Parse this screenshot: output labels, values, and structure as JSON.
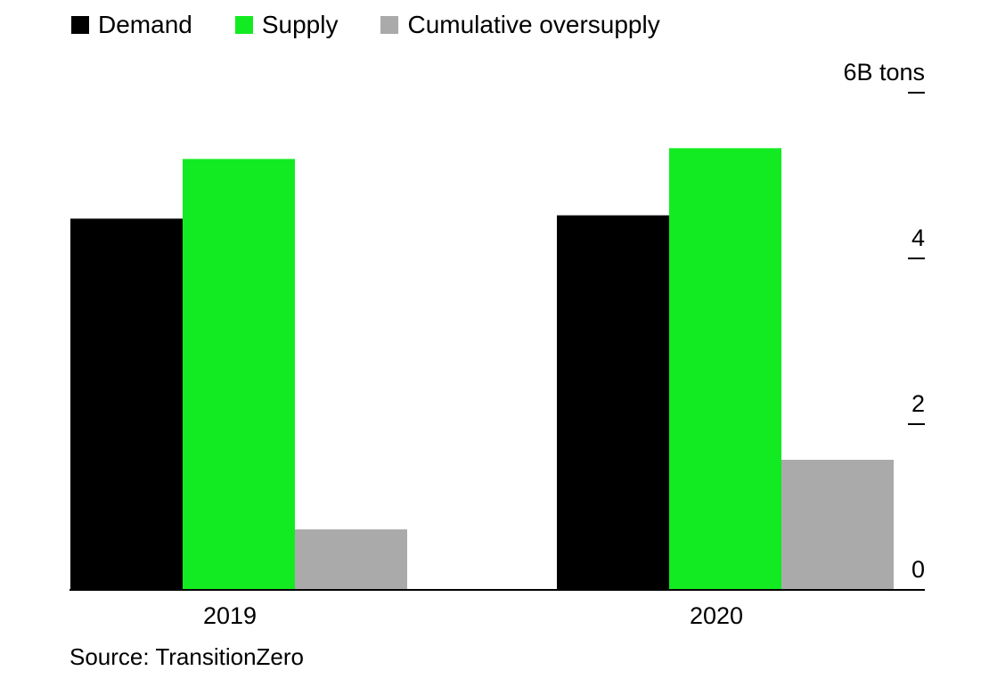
{
  "chart_data": {
    "type": "bar",
    "categories": [
      "2019",
      "2020"
    ],
    "series": [
      {
        "name": "Demand",
        "color": "#000000",
        "values": [
          4.48,
          4.52
        ]
      },
      {
        "name": "Supply",
        "color": "#12eb21",
        "values": [
          5.2,
          5.33
        ]
      },
      {
        "name": "Cumulative oversupply",
        "color": "#aaaaaa",
        "values": [
          0.73,
          1.57
        ]
      }
    ],
    "ylim": [
      0,
      6
    ],
    "yticks": [
      {
        "value": 0,
        "label": "0"
      },
      {
        "value": 2,
        "label": "2"
      },
      {
        "value": 4,
        "label": "4"
      },
      {
        "value": 6,
        "label": "6B tons"
      }
    ],
    "axis_position": "right",
    "legend_position": "top-left",
    "grid": false
  },
  "source": "Source: TransitionZero"
}
